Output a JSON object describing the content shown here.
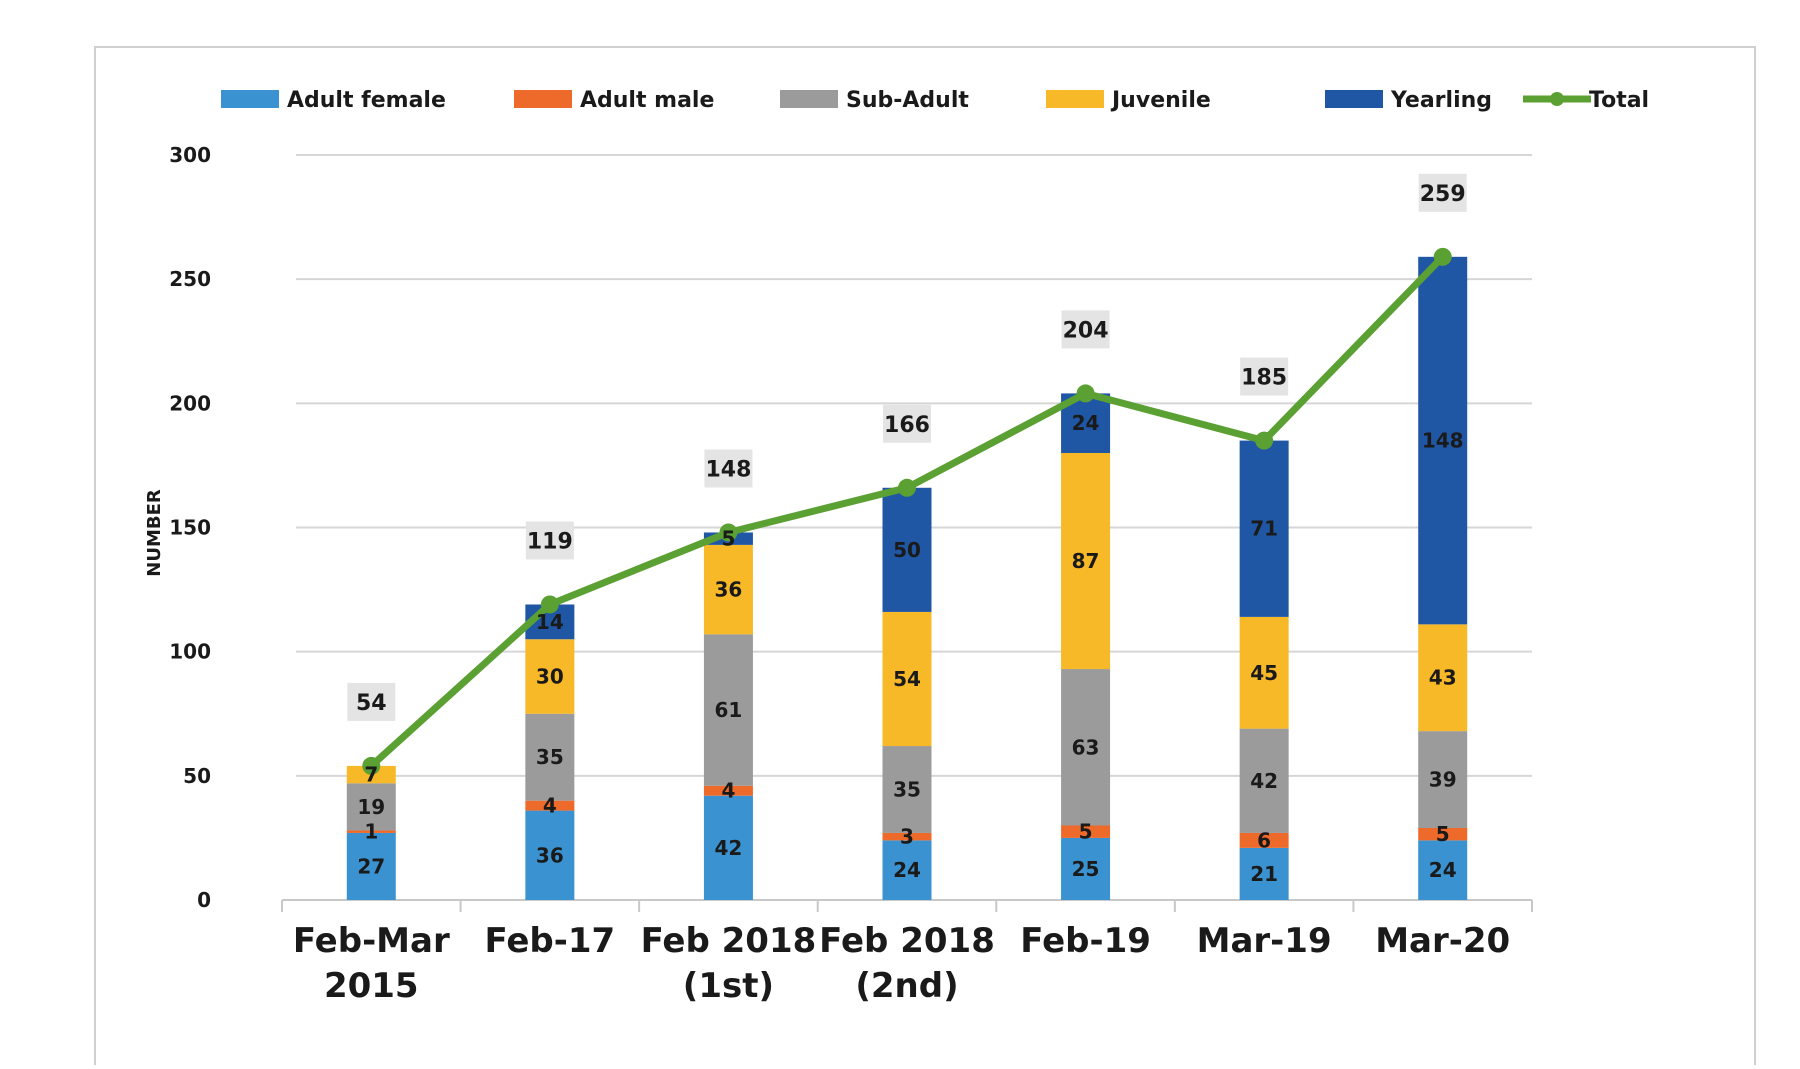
{
  "chart_data": {
    "type": "bar",
    "stacked": true,
    "title": "",
    "xlabel": "",
    "ylabel": "NUMBER",
    "ylim": [
      0,
      300
    ],
    "yticks": [
      0,
      50,
      100,
      150,
      200,
      250,
      300
    ],
    "grid": true,
    "legend_position": "top",
    "categories": [
      [
        "Feb-Mar",
        "2015"
      ],
      [
        "Feb-17"
      ],
      [
        "Feb 2018",
        "(1st)"
      ],
      [
        "Feb 2018",
        "(2nd)"
      ],
      [
        "Feb-19"
      ],
      [
        "Mar-19"
      ],
      [
        "Mar-20"
      ]
    ],
    "series": [
      {
        "name": "Adult female",
        "color": "#3a93d0",
        "values": [
          27,
          36,
          42,
          24,
          25,
          21,
          24
        ]
      },
      {
        "name": "Adult male",
        "color": "#ee6a2b",
        "values": [
          1,
          4,
          4,
          3,
          5,
          6,
          5
        ]
      },
      {
        "name": "Sub-Adult",
        "color": "#9b9b9b",
        "values": [
          19,
          35,
          61,
          35,
          63,
          42,
          39
        ]
      },
      {
        "name": "Juvenile",
        "color": "#f7b927",
        "values": [
          7,
          30,
          36,
          54,
          87,
          45,
          43
        ]
      },
      {
        "name": "Yearling",
        "color": "#1f57a5",
        "values": [
          0,
          14,
          5,
          50,
          24,
          71,
          148
        ]
      }
    ],
    "total": {
      "name": "Total",
      "type": "line",
      "color": "#5ba033",
      "values": [
        54,
        119,
        148,
        166,
        204,
        185,
        259
      ]
    }
  }
}
